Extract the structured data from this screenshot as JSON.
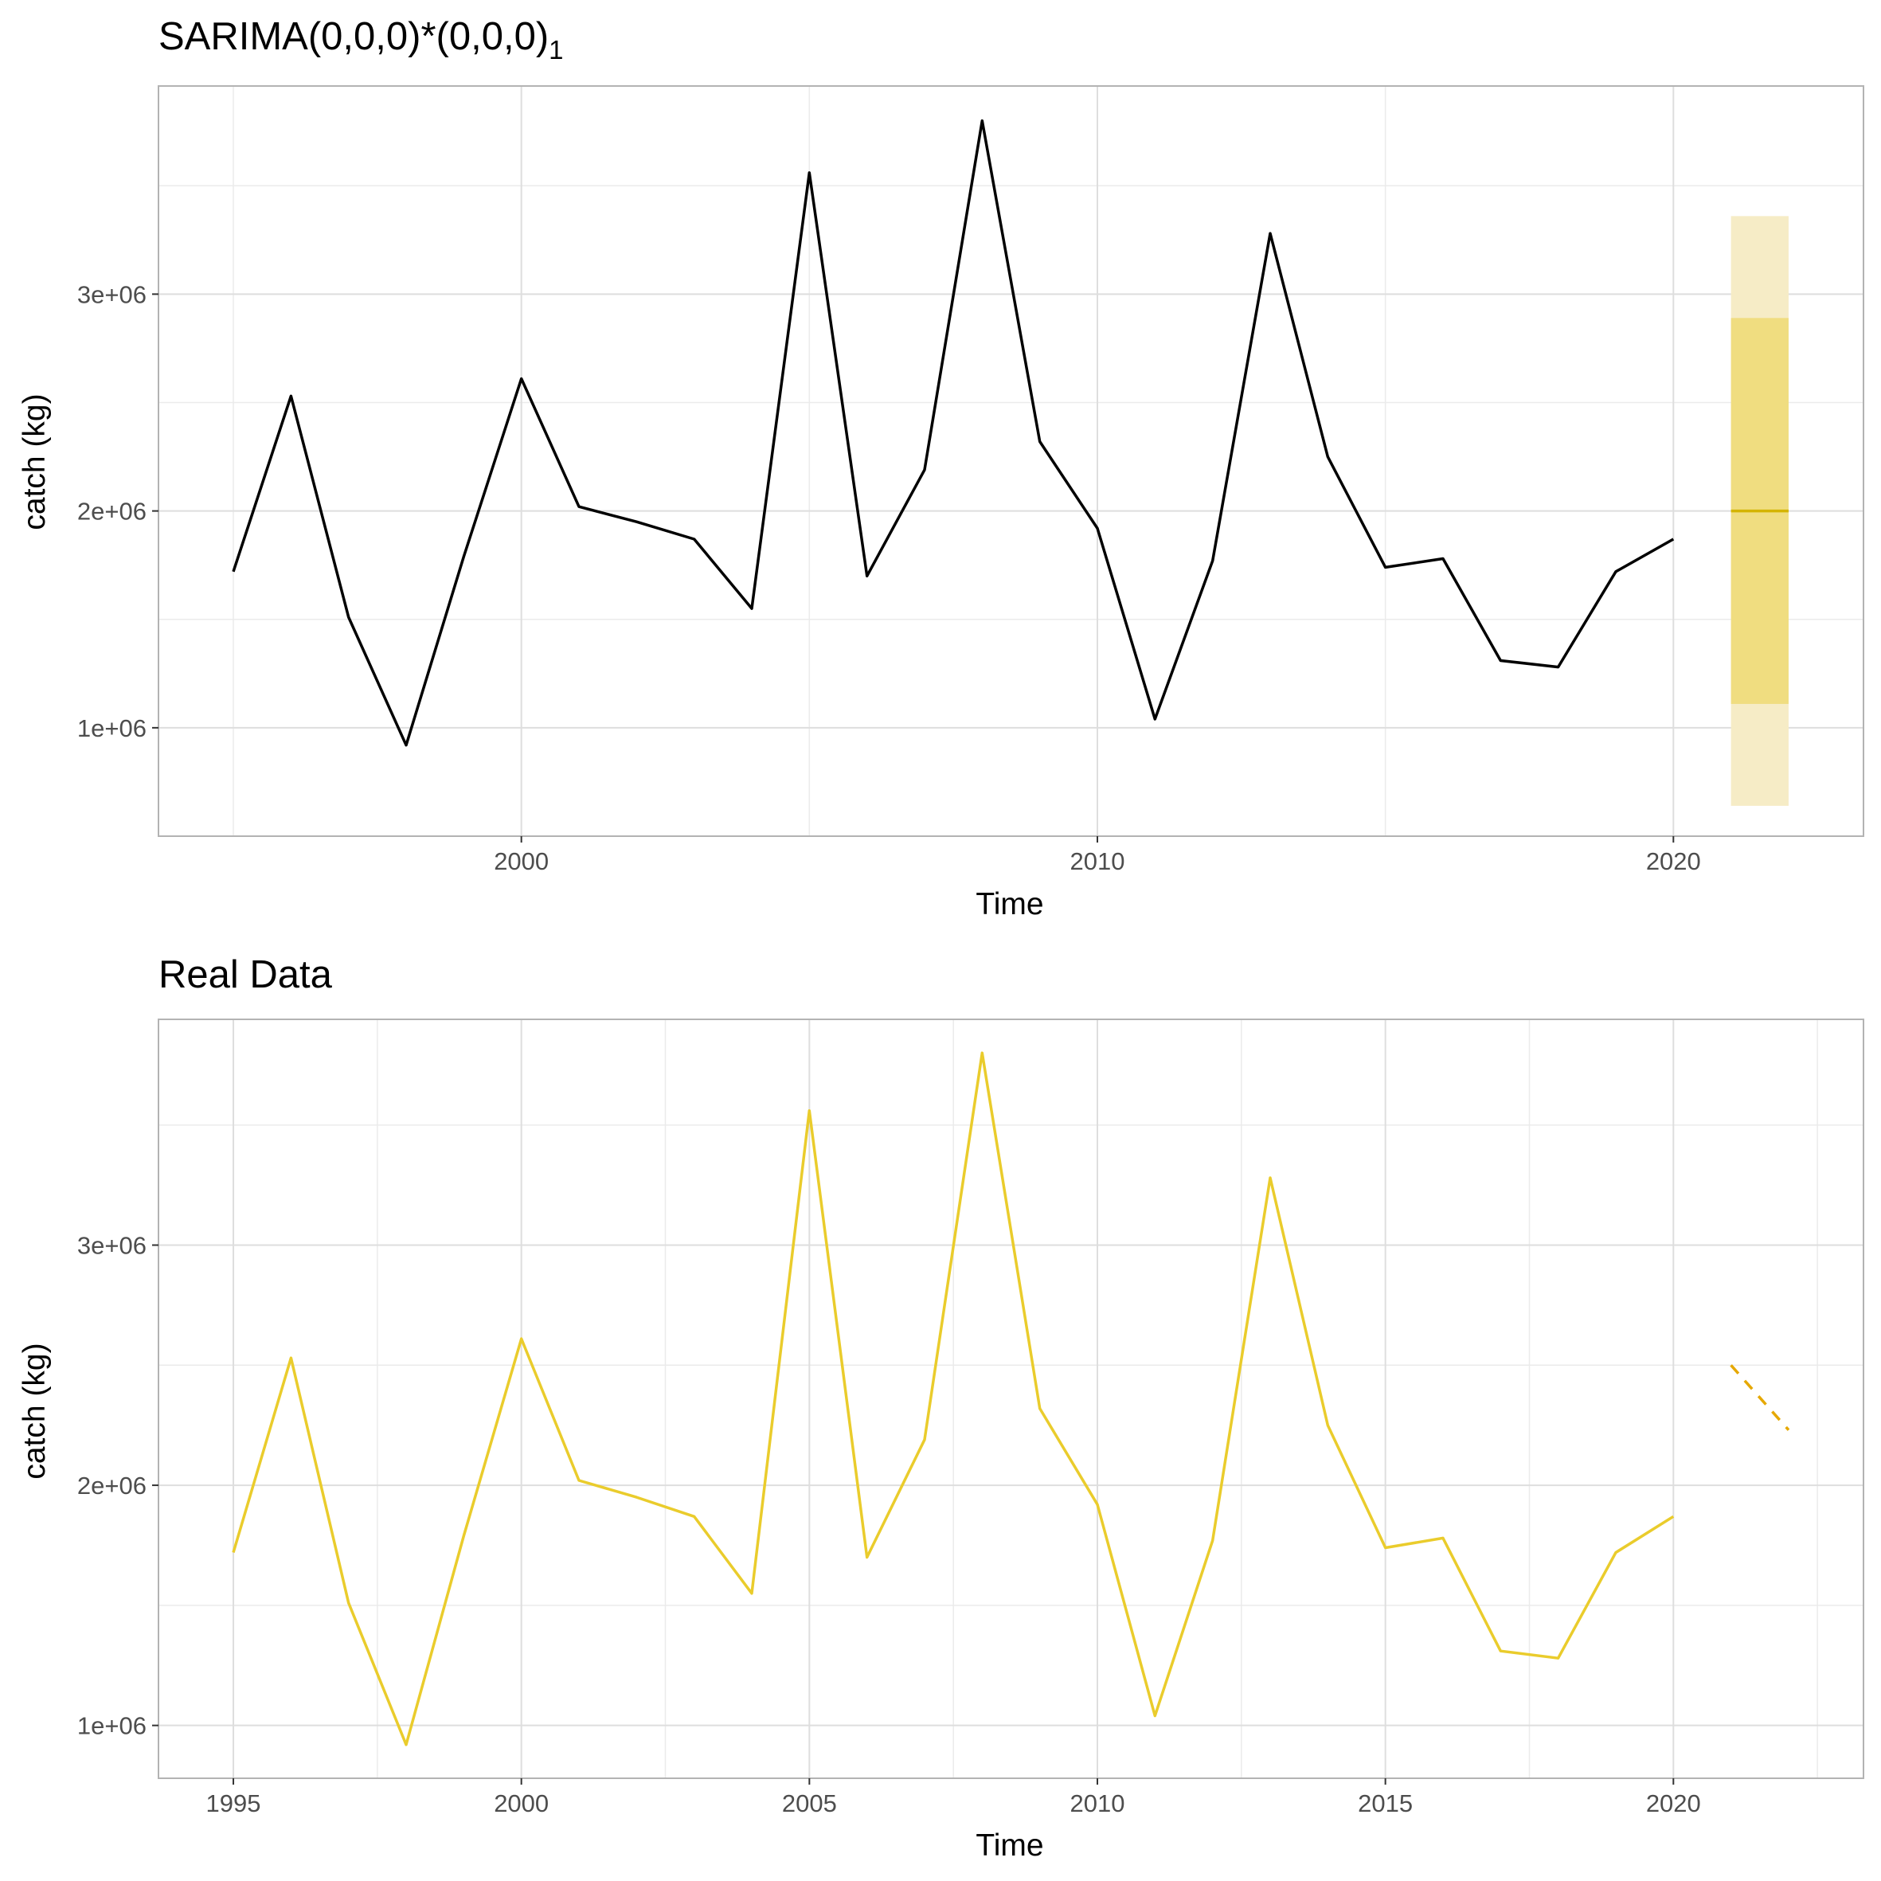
{
  "chart_data": [
    {
      "type": "line",
      "title": "SARIMA(0,0,0)*(0,0,0)",
      "title_subscript": "1",
      "xlabel": "Time",
      "ylabel": "catch (kg)",
      "xlim": [
        1993.7,
        2023.3
      ],
      "ylim": [
        500000,
        3960000
      ],
      "x_ticks": [
        2000,
        2010,
        2020
      ],
      "x_tick_labels": [
        "2000",
        "2010",
        "2020"
      ],
      "x_minor_ticks": [
        1995,
        2005,
        2015
      ],
      "y_ticks": [
        1000000,
        2000000,
        3000000
      ],
      "y_tick_labels": [
        "1e+06",
        "2e+06",
        "3e+06"
      ],
      "y_minor_ticks": [
        1500000,
        2500000,
        3500000
      ],
      "grid": true,
      "series": [
        {
          "color": "#000000",
          "x": [
            1995,
            1996,
            1997,
            1998,
            1999,
            2000,
            2001,
            2002,
            2003,
            2004,
            2005,
            2006,
            2007,
            2008,
            2009,
            2010,
            2011,
            2012,
            2013,
            2014,
            2015,
            2016,
            2017,
            2018,
            2019,
            2020
          ],
          "y": [
            1720000,
            2530000,
            1510000,
            920000,
            1790000,
            2610000,
            2020000,
            1950000,
            1870000,
            1550000,
            3560000,
            1700000,
            2190000,
            3800000,
            2320000,
            1920000,
            1040000,
            1770000,
            3280000,
            2250000,
            1740000,
            1780000,
            1310000,
            1280000,
            1720000,
            1870000
          ]
        }
      ],
      "forecast": {
        "x_start": 2021,
        "x_end": 2022,
        "mean": 2000000,
        "interval_80": [
          1110000,
          2890000
        ],
        "interval_95": [
          640000,
          3360000
        ],
        "mean_color": "#d4b400",
        "band_80_color": "#f0dd80",
        "band_95_color": "#f6ecc6"
      }
    },
    {
      "type": "line",
      "title": "Real Data",
      "xlabel": "Time",
      "ylabel": "catch (kg)",
      "xlim": [
        1993.7,
        2023.3
      ],
      "ylim": [
        780000,
        3940000
      ],
      "x_ticks": [
        1995,
        2000,
        2005,
        2010,
        2015,
        2020
      ],
      "x_tick_labels": [
        "1995",
        "2000",
        "2005",
        "2010",
        "2015",
        "2020"
      ],
      "x_minor_ticks": [
        1997.5,
        2002.5,
        2007.5,
        2012.5,
        2017.5,
        2022.5
      ],
      "y_ticks": [
        1000000,
        2000000,
        3000000
      ],
      "y_tick_labels": [
        "1e+06",
        "2e+06",
        "3e+06"
      ],
      "y_minor_ticks": [
        1500000,
        2500000,
        3500000
      ],
      "grid": true,
      "series": [
        {
          "color": "#eacc2c",
          "x": [
            1995,
            1996,
            1997,
            1998,
            1999,
            2000,
            2001,
            2002,
            2003,
            2004,
            2005,
            2006,
            2007,
            2008,
            2009,
            2010,
            2011,
            2012,
            2013,
            2014,
            2015,
            2016,
            2017,
            2018,
            2019,
            2020
          ],
          "y": [
            1720000,
            2530000,
            1510000,
            920000,
            1790000,
            2610000,
            2020000,
            1950000,
            1870000,
            1550000,
            3560000,
            1700000,
            2190000,
            3800000,
            2320000,
            1920000,
            1040000,
            1770000,
            3280000,
            2250000,
            1740000,
            1780000,
            1310000,
            1280000,
            1720000,
            1870000
          ]
        },
        {
          "color": "#e6a800",
          "dashed": true,
          "x": [
            2021,
            2022
          ],
          "y": [
            2500000,
            2230000
          ]
        }
      ]
    }
  ]
}
